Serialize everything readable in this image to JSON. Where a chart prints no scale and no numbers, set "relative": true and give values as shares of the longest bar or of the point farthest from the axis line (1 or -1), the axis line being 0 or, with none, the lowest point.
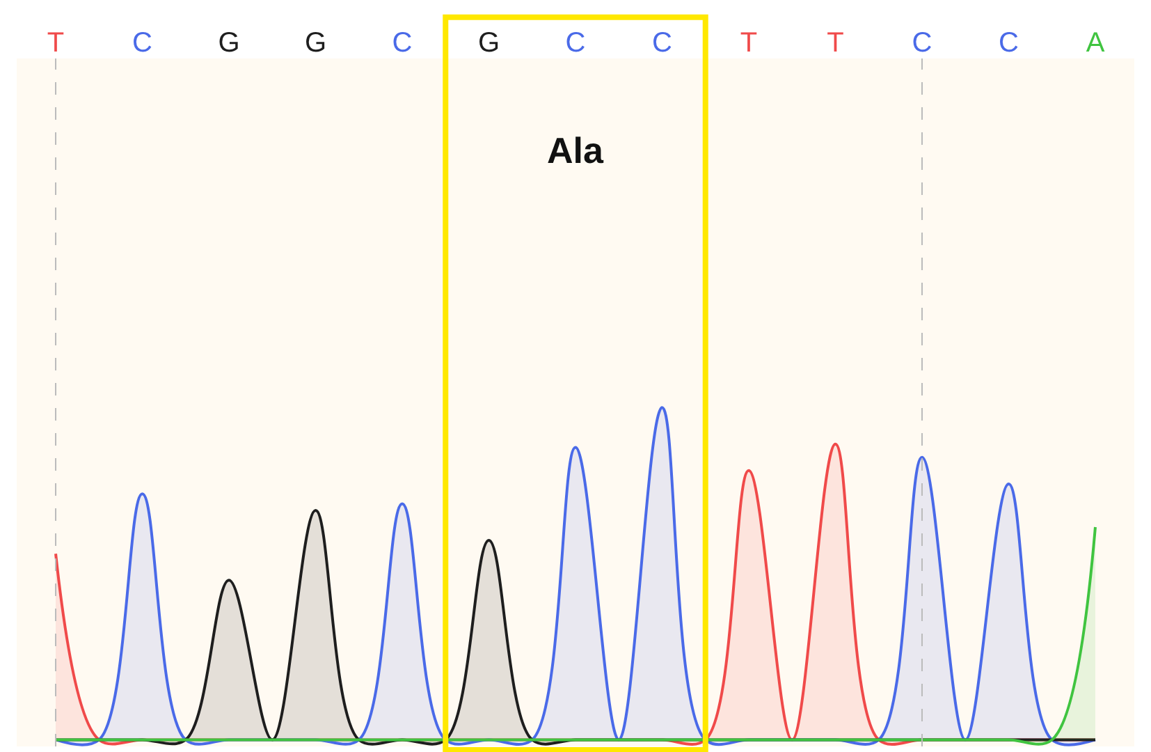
{
  "chart_data": {
    "type": "area",
    "relative": true,
    "categories": [
      "T",
      null,
      "C",
      null,
      "G",
      null,
      "G",
      null,
      "C",
      null,
      "G",
      null,
      "C",
      null,
      "C",
      null,
      "T",
      null,
      "T",
      null,
      "C",
      null,
      "C",
      null,
      "A"
    ],
    "series": [
      {
        "color": "#f04a4a",
        "values": [
          0.56,
          0,
          0,
          0,
          0,
          0,
          0,
          0,
          0,
          0,
          0,
          0,
          0,
          0,
          0,
          0,
          0.81,
          0,
          0.89,
          0,
          0,
          0,
          0,
          0,
          0
        ]
      },
      {
        "color": "#4a6ae8",
        "values": [
          0,
          0,
          0.74,
          0,
          0,
          0,
          0,
          0,
          0.71,
          0,
          0,
          0,
          0.88,
          0,
          1.0,
          0,
          0,
          0,
          0,
          0,
          0.85,
          0,
          0.77,
          0,
          0
        ]
      },
      {
        "color": "#1e1e1e",
        "values": [
          0,
          0,
          0,
          0,
          0.48,
          0,
          0.69,
          0,
          0,
          0,
          0.6,
          0,
          0,
          0,
          0,
          0,
          0,
          0,
          0,
          0,
          0,
          0,
          0,
          0,
          0
        ]
      },
      {
        "color": "#40c440",
        "values": [
          0,
          0,
          0,
          0,
          0,
          0,
          0,
          0,
          0,
          0,
          0,
          0,
          0,
          0,
          0,
          0,
          0,
          0,
          0,
          0,
          0,
          0,
          0,
          0,
          0.64
        ]
      }
    ],
    "annotations": [
      "Ala"
    ],
    "legend": false
  }
}
